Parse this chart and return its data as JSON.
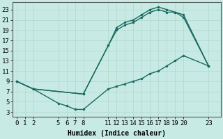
{
  "title": "",
  "xlabel": "Humidex (Indice chaleur)",
  "ylabel": "",
  "bg_color": "#c8eae4",
  "line_color": "#1a6b60",
  "grid_color": "#b0d8cc",
  "xticks": [
    0,
    1,
    2,
    5,
    6,
    7,
    8,
    11,
    12,
    13,
    14,
    15,
    16,
    17,
    18,
    19,
    20,
    23
  ],
  "yticks": [
    3,
    5,
    7,
    9,
    11,
    13,
    15,
    17,
    19,
    21,
    23
  ],
  "xlim": [
    -0.5,
    24.5
  ],
  "ylim": [
    2,
    24.5
  ],
  "line1_x": [
    0,
    2,
    5,
    6,
    7,
    8,
    11,
    12,
    13,
    14,
    15,
    16,
    17,
    18,
    19,
    20,
    23
  ],
  "line1_y": [
    9,
    7.5,
    4.7,
    4.2,
    3.5,
    3.5,
    7.5,
    8,
    8.5,
    9,
    9.5,
    10.5,
    11,
    12,
    13,
    14,
    12
  ],
  "line2_x": [
    0,
    2,
    8,
    11,
    12,
    13,
    14,
    15,
    16,
    17,
    18,
    19,
    20,
    23
  ],
  "line2_y": [
    9,
    7.5,
    6.5,
    16,
    19,
    20,
    20.5,
    21.5,
    22.5,
    23,
    22.5,
    22.5,
    21.5,
    12
  ],
  "line3_x": [
    0,
    2,
    8,
    11,
    12,
    13,
    14,
    15,
    16,
    17,
    18,
    19,
    20,
    23
  ],
  "line3_y": [
    9,
    7.5,
    6.5,
    16,
    19.5,
    20.5,
    21,
    22,
    23,
    23.5,
    23,
    22.5,
    22,
    12
  ],
  "marker_size": 2.5,
  "linewidth": 1.0,
  "font_size": 6.5
}
